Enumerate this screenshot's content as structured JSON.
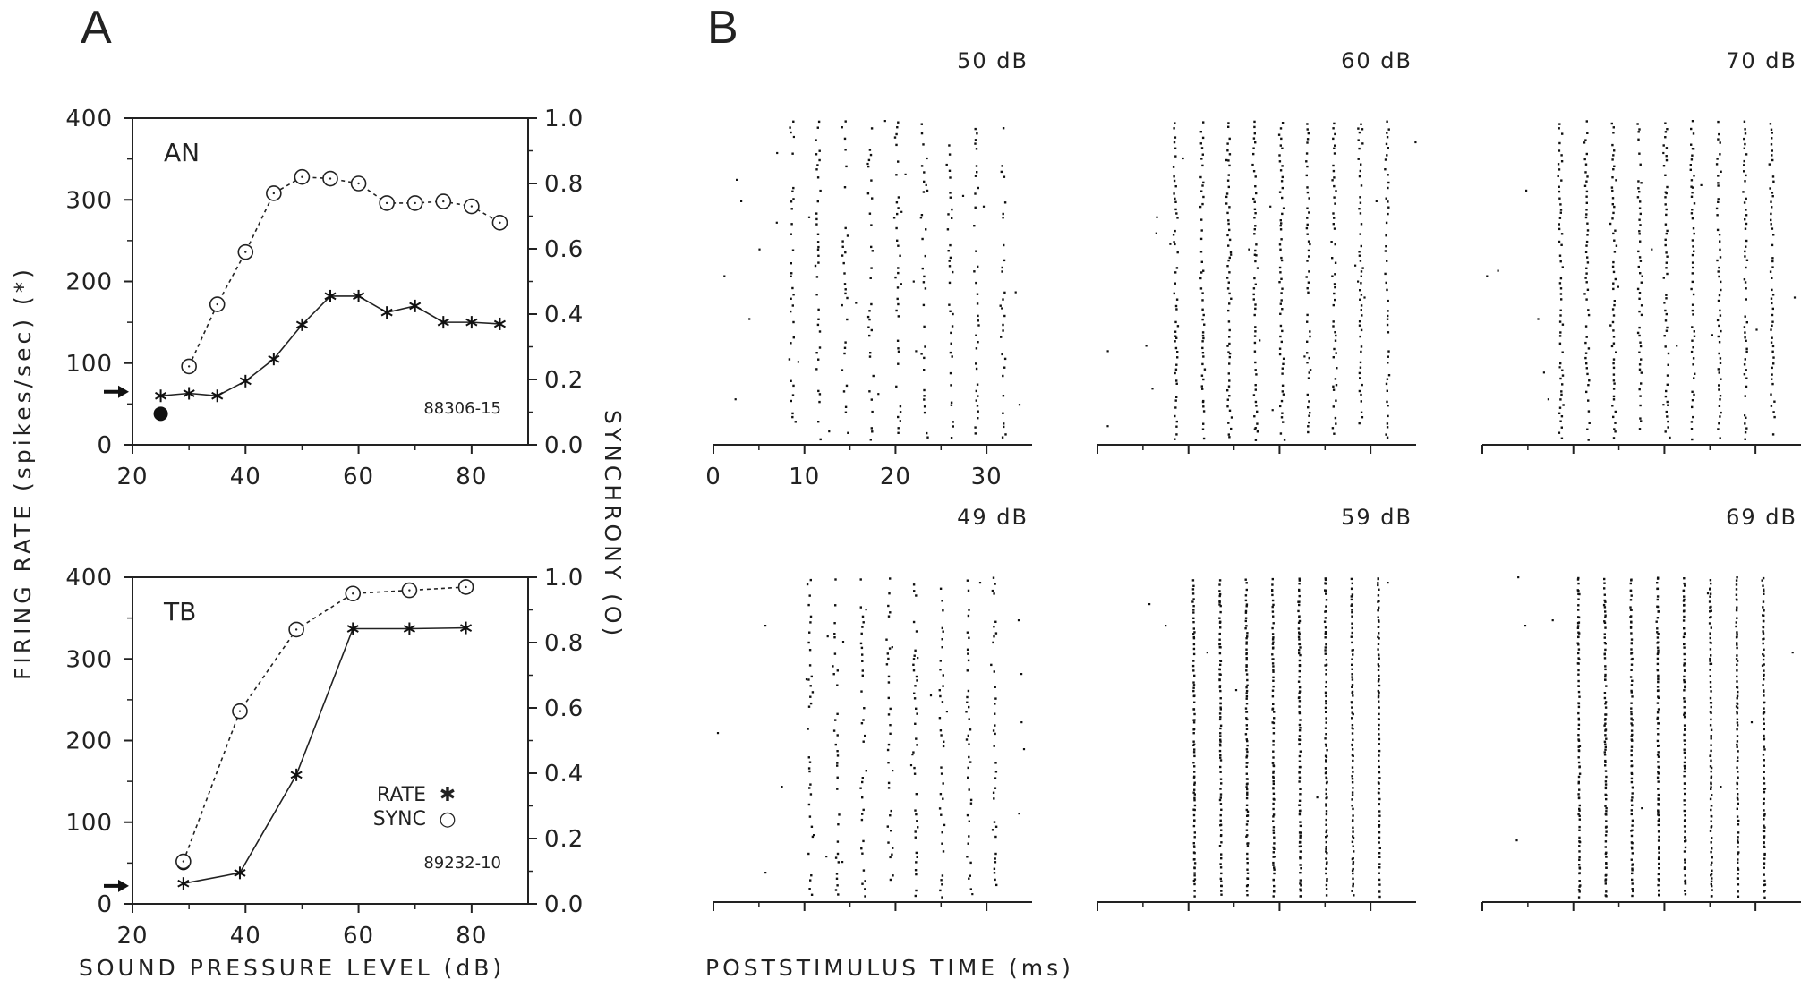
{
  "panel_letters": {
    "a": "A",
    "b": "B"
  },
  "axis_text": {
    "left_y_label": "FIRING RATE (spikes/sec) (*)",
    "right_y_label": "SYNCHRONY (O)",
    "x_label_a": "SOUND PRESSURE LEVEL (dB)",
    "x_label_b": "POSTSTIMULUS TIME (ms)"
  },
  "legend": {
    "rate_label": "RATE",
    "sync_label": "SYNC",
    "rate_marker": "✱",
    "sync_marker": "○"
  },
  "chart_data": [
    {
      "type": "line",
      "title": "AN",
      "annotation": "88306-15",
      "xlim": [
        20,
        90
      ],
      "ylim": [
        0,
        400
      ],
      "y2lim": [
        0,
        1.0
      ],
      "x_ticks": [
        20,
        40,
        60,
        80
      ],
      "y_ticks": [
        0,
        100,
        200,
        300,
        400
      ],
      "y2_ticks": [
        0.0,
        0.2,
        0.4,
        0.6,
        0.8,
        1.0
      ],
      "x_tick_labels": [
        "20",
        "40",
        "60",
        "80"
      ],
      "y_tick_labels": [
        "0",
        "100",
        "200",
        "300",
        "400"
      ],
      "y2_tick_labels": [
        "0.0",
        "0.2",
        "0.4",
        "0.6",
        "0.8",
        "1.0"
      ],
      "spontaneous_rate": 65,
      "threshold_point": {
        "x": 25,
        "y": 38
      },
      "series": [
        {
          "name": "RATE",
          "marker": "asterisk",
          "axis": "left",
          "style": "solid",
          "x": [
            25,
            30,
            35,
            40,
            45,
            50,
            55,
            60,
            65,
            70,
            75,
            80,
            85
          ],
          "y": [
            60,
            63,
            60,
            78,
            105,
            147,
            182,
            182,
            162,
            170,
            150,
            150,
            148
          ]
        },
        {
          "name": "SYNC",
          "marker": "circle",
          "axis": "right",
          "style": "dashed",
          "x": [
            30,
            35,
            40,
            45,
            50,
            55,
            60,
            65,
            70,
            75,
            80,
            85
          ],
          "y": [
            0.24,
            0.43,
            0.59,
            0.77,
            0.82,
            0.815,
            0.8,
            0.74,
            0.74,
            0.745,
            0.73,
            0.68
          ]
        }
      ]
    },
    {
      "type": "line",
      "title": "TB",
      "annotation": "89232-10",
      "xlim": [
        20,
        90
      ],
      "ylim": [
        0,
        400
      ],
      "y2lim": [
        0,
        1.0
      ],
      "x_ticks": [
        20,
        40,
        60,
        80
      ],
      "y_ticks": [
        0,
        100,
        200,
        300,
        400
      ],
      "y2_ticks": [
        0.0,
        0.2,
        0.4,
        0.6,
        0.8,
        1.0
      ],
      "x_tick_labels": [
        "20",
        "40",
        "60",
        "80"
      ],
      "y_tick_labels": [
        "0",
        "100",
        "200",
        "300",
        "400"
      ],
      "y2_tick_labels": [
        "0.0",
        "0.2",
        "0.4",
        "0.6",
        "0.8",
        "1.0"
      ],
      "spontaneous_rate": 22,
      "threshold_point": {
        "x": 29,
        "y": 50
      },
      "series": [
        {
          "name": "RATE",
          "marker": "asterisk",
          "axis": "left",
          "style": "solid",
          "x": [
            29,
            39,
            49,
            59,
            69,
            79
          ],
          "y": [
            25,
            38,
            158,
            337,
            337,
            338
          ]
        },
        {
          "name": "SYNC",
          "marker": "circle",
          "axis": "right",
          "style": "dashed",
          "x": [
            29,
            39,
            49,
            59,
            69,
            79
          ],
          "y": [
            0.13,
            0.59,
            0.84,
            0.95,
            0.96,
            0.97
          ]
        }
      ]
    },
    {
      "type": "scatter",
      "title": "50 dB",
      "xlim": [
        0,
        35
      ],
      "x_ticks": [
        0,
        10,
        20,
        30
      ],
      "x_tick_labels": [
        "0",
        "10",
        "20",
        "30"
      ],
      "minor_x_ticks": [
        5,
        15,
        25
      ],
      "stimulus_period_ms": 2.9,
      "first_cycle_ms": 8.5,
      "cycles": 9,
      "firing_style": "sparse_phase_locked"
    },
    {
      "type": "scatter",
      "title": "60 dB",
      "xlim": [
        0,
        35
      ],
      "x_ticks": [
        0,
        10,
        20,
        30
      ],
      "minor_x_ticks": [
        5,
        15,
        25
      ],
      "stimulus_period_ms": 2.9,
      "first_cycle_ms": 8.5,
      "cycles": 9,
      "firing_style": "dense_phase_locked"
    },
    {
      "type": "scatter",
      "title": "70 dB",
      "xlim": [
        0,
        35
      ],
      "x_ticks": [
        0,
        10,
        20,
        30
      ],
      "minor_x_ticks": [
        5,
        15,
        25
      ],
      "stimulus_period_ms": 2.9,
      "first_cycle_ms": 8.5,
      "cycles": 9,
      "firing_style": "dense_phase_locked"
    },
    {
      "type": "scatter",
      "title": "49 dB",
      "xlim": [
        0,
        35
      ],
      "x_ticks": [
        0,
        10,
        20,
        30
      ],
      "minor_x_ticks": [
        5,
        15,
        25
      ],
      "stimulus_period_ms": 2.9,
      "first_cycle_ms": 10.5,
      "cycles": 8,
      "firing_style": "sparse_phase_locked"
    },
    {
      "type": "scatter",
      "title": "59 dB",
      "xlim": [
        0,
        35
      ],
      "x_ticks": [
        0,
        10,
        20,
        30
      ],
      "minor_x_ticks": [
        5,
        15,
        25
      ],
      "stimulus_period_ms": 2.9,
      "first_cycle_ms": 10.5,
      "cycles": 8,
      "firing_style": "tight_phase_locked"
    },
    {
      "type": "scatter",
      "title": "69 dB",
      "xlim": [
        0,
        35
      ],
      "x_ticks": [
        0,
        10,
        20,
        30
      ],
      "minor_x_ticks": [
        5,
        15,
        25
      ],
      "stimulus_period_ms": 2.9,
      "first_cycle_ms": 10.5,
      "cycles": 8,
      "firing_style": "tight_phase_locked"
    }
  ]
}
